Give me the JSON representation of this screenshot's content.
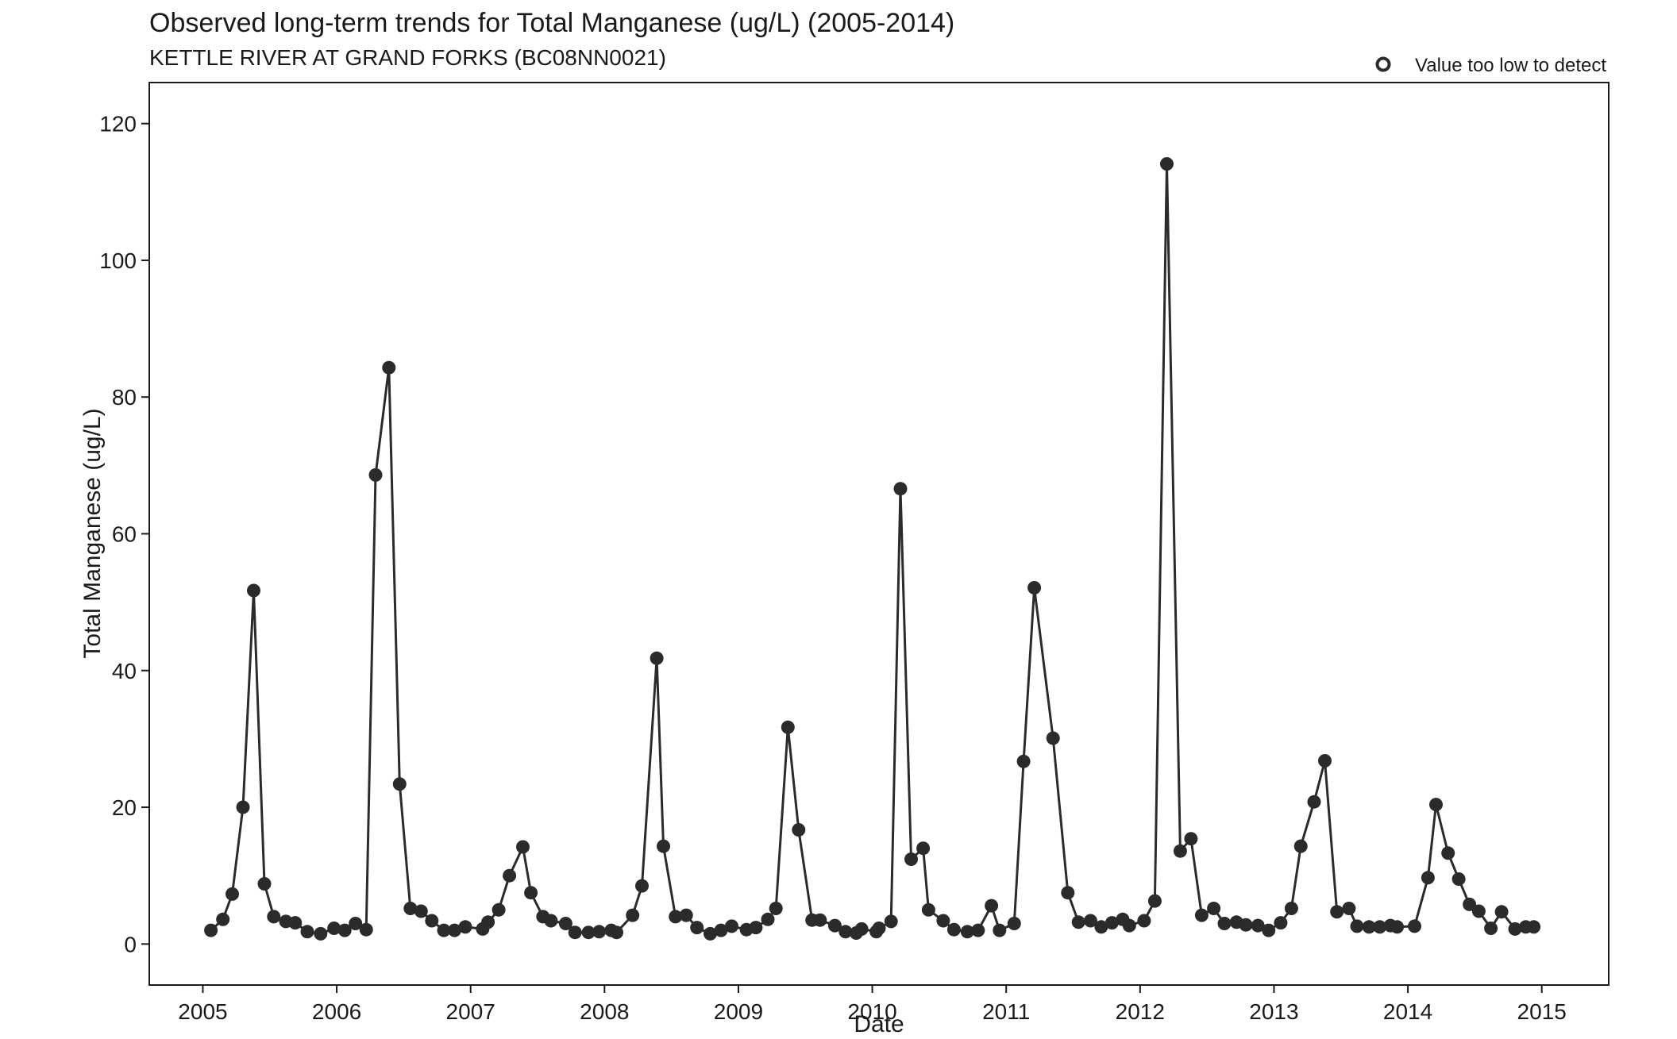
{
  "chart_data": {
    "type": "line",
    "title": "Observed long-term trends for Total Manganese (ug/L) (2005-2014)",
    "subtitle": "KETTLE RIVER AT GRAND FORKS (BC08NN0021)",
    "xlabel": "Date",
    "ylabel": "Total Manganese (ug/L)",
    "xlim": [
      2004.6,
      2015.5
    ],
    "ylim": [
      -6,
      126
    ],
    "xticks": [
      2005,
      2006,
      2007,
      2008,
      2009,
      2010,
      2011,
      2012,
      2013,
      2014,
      2015
    ],
    "yticks": [
      0,
      20,
      40,
      60,
      80,
      100,
      120
    ],
    "grid": false,
    "legend": {
      "position": "top-right",
      "entries": [
        {
          "label": "Value too low to detect",
          "marker": "open-circle"
        }
      ]
    },
    "series": [
      {
        "marker": "filled-circle",
        "color": "#2b2b2b",
        "x": [
          2005.06,
          2005.15,
          2005.22,
          2005.3,
          2005.38,
          2005.46,
          2005.53,
          2005.62,
          2005.69,
          2005.78,
          2005.88,
          2005.98,
          2006.06,
          2006.14,
          2006.22,
          2006.29,
          2006.39,
          2006.47,
          2006.55,
          2006.63,
          2006.71,
          2006.8,
          2006.88,
          2006.96,
          2007.09,
          2007.13,
          2007.21,
          2007.29,
          2007.39,
          2007.45,
          2007.54,
          2007.6,
          2007.71,
          2007.78,
          2007.88,
          2007.96,
          2008.05,
          2008.09,
          2008.21,
          2008.28,
          2008.39,
          2008.44,
          2008.53,
          2008.61,
          2008.69,
          2008.79,
          2008.87,
          2008.95,
          2009.06,
          2009.13,
          2009.22,
          2009.28,
          2009.37,
          2009.45,
          2009.55,
          2009.61,
          2009.72,
          2009.8,
          2009.88,
          2009.92,
          2010.03,
          2010.05,
          2010.14,
          2010.21,
          2010.29,
          2010.38,
          2010.42,
          2010.53,
          2010.61,
          2010.71,
          2010.79,
          2010.89,
          2010.95,
          2011.06,
          2011.13,
          2011.21,
          2011.35,
          2011.46,
          2011.54,
          2011.63,
          2011.71,
          2011.79,
          2011.87,
          2011.92,
          2012.03,
          2012.11,
          2012.2,
          2012.3,
          2012.38,
          2012.46,
          2012.55,
          2012.63,
          2012.72,
          2012.79,
          2012.88,
          2012.96,
          2013.05,
          2013.13,
          2013.2,
          2013.3,
          2013.38,
          2013.47,
          2013.56,
          2013.62,
          2013.71,
          2013.79,
          2013.87,
          2013.92,
          2014.05,
          2014.15,
          2014.21,
          2014.3,
          2014.38,
          2014.46,
          2014.53,
          2014.62,
          2014.7,
          2014.8,
          2014.88,
          2014.94
        ],
        "y": [
          2.0,
          3.6,
          7.3,
          20.0,
          51.7,
          8.8,
          4.0,
          3.3,
          3.1,
          1.8,
          1.5,
          2.3,
          2.0,
          3.0,
          2.1,
          68.6,
          84.3,
          23.4,
          5.2,
          4.8,
          3.4,
          2.0,
          2.0,
          2.5,
          2.2,
          3.2,
          5.0,
          10.0,
          14.2,
          7.5,
          4.0,
          3.4,
          3.0,
          1.7,
          1.7,
          1.8,
          2.0,
          1.7,
          4.2,
          8.5,
          41.8,
          14.3,
          4.0,
          4.2,
          2.4,
          1.5,
          2.0,
          2.6,
          2.1,
          2.4,
          3.6,
          5.2,
          31.7,
          16.7,
          3.5,
          3.5,
          2.7,
          1.8,
          1.6,
          2.2,
          1.8,
          2.3,
          3.3,
          66.6,
          12.4,
          14.0,
          5.0,
          3.4,
          2.1,
          1.8,
          2.0,
          5.6,
          2.0,
          3.0,
          26.7,
          52.1,
          30.1,
          7.5,
          3.2,
          3.4,
          2.5,
          3.1,
          3.6,
          2.7,
          3.4,
          6.3,
          114.1,
          13.6,
          15.4,
          4.2,
          5.2,
          3.0,
          3.2,
          2.8,
          2.7,
          2.0,
          3.1,
          5.2,
          14.3,
          20.8,
          26.8,
          4.7,
          5.2,
          2.6,
          2.5,
          2.5,
          2.7,
          2.5,
          2.6,
          9.7,
          20.4,
          13.3,
          9.5,
          5.8,
          4.8,
          2.3,
          4.7,
          2.2,
          2.5,
          2.5
        ]
      }
    ]
  }
}
